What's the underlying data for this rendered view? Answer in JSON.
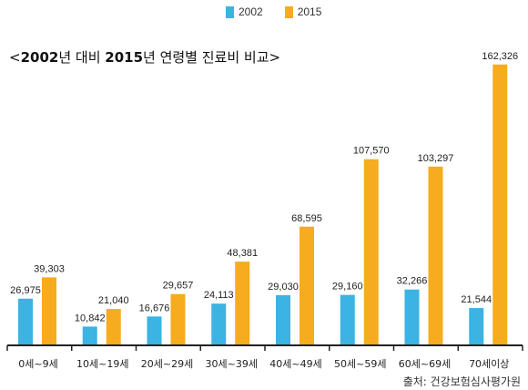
{
  "chart_data": {
    "type": "bar",
    "title_parts": [
      {
        "text": "<",
        "bold": false
      },
      {
        "text": "2002",
        "bold": true
      },
      {
        "text": "년 대비 ",
        "bold": false
      },
      {
        "text": "2015",
        "bold": true
      },
      {
        "text": "년 연령별 진료비 비교>",
        "bold": false
      }
    ],
    "categories": [
      "0세~9세",
      "10세~19세",
      "20세~29세",
      "30세~39세",
      "40세~49세",
      "50세~59세",
      "60세~69세",
      "70세이상"
    ],
    "series": [
      {
        "name": "2002",
        "color": "#3bb3e3",
        "values": [
          26975,
          10842,
          16676,
          24113,
          29030,
          29160,
          32266,
          21544
        ],
        "labels": [
          "26,975",
          "10,842",
          "16,676",
          "24,113",
          "29,030",
          "29,160",
          "32,266",
          "21,544"
        ]
      },
      {
        "name": "2015",
        "color": "#f6ac1e",
        "values": [
          39303,
          21040,
          29657,
          48381,
          68595,
          107570,
          103297,
          162326
        ],
        "labels": [
          "39,303",
          "21,040",
          "29,657",
          "48,381",
          "68,595",
          "107,570",
          "103,297",
          "162,326"
        ]
      }
    ],
    "ylim": [
      0,
      168000
    ],
    "grid": false,
    "legend_position": "top-center",
    "source": "출처: 건강보험심사평가원"
  }
}
